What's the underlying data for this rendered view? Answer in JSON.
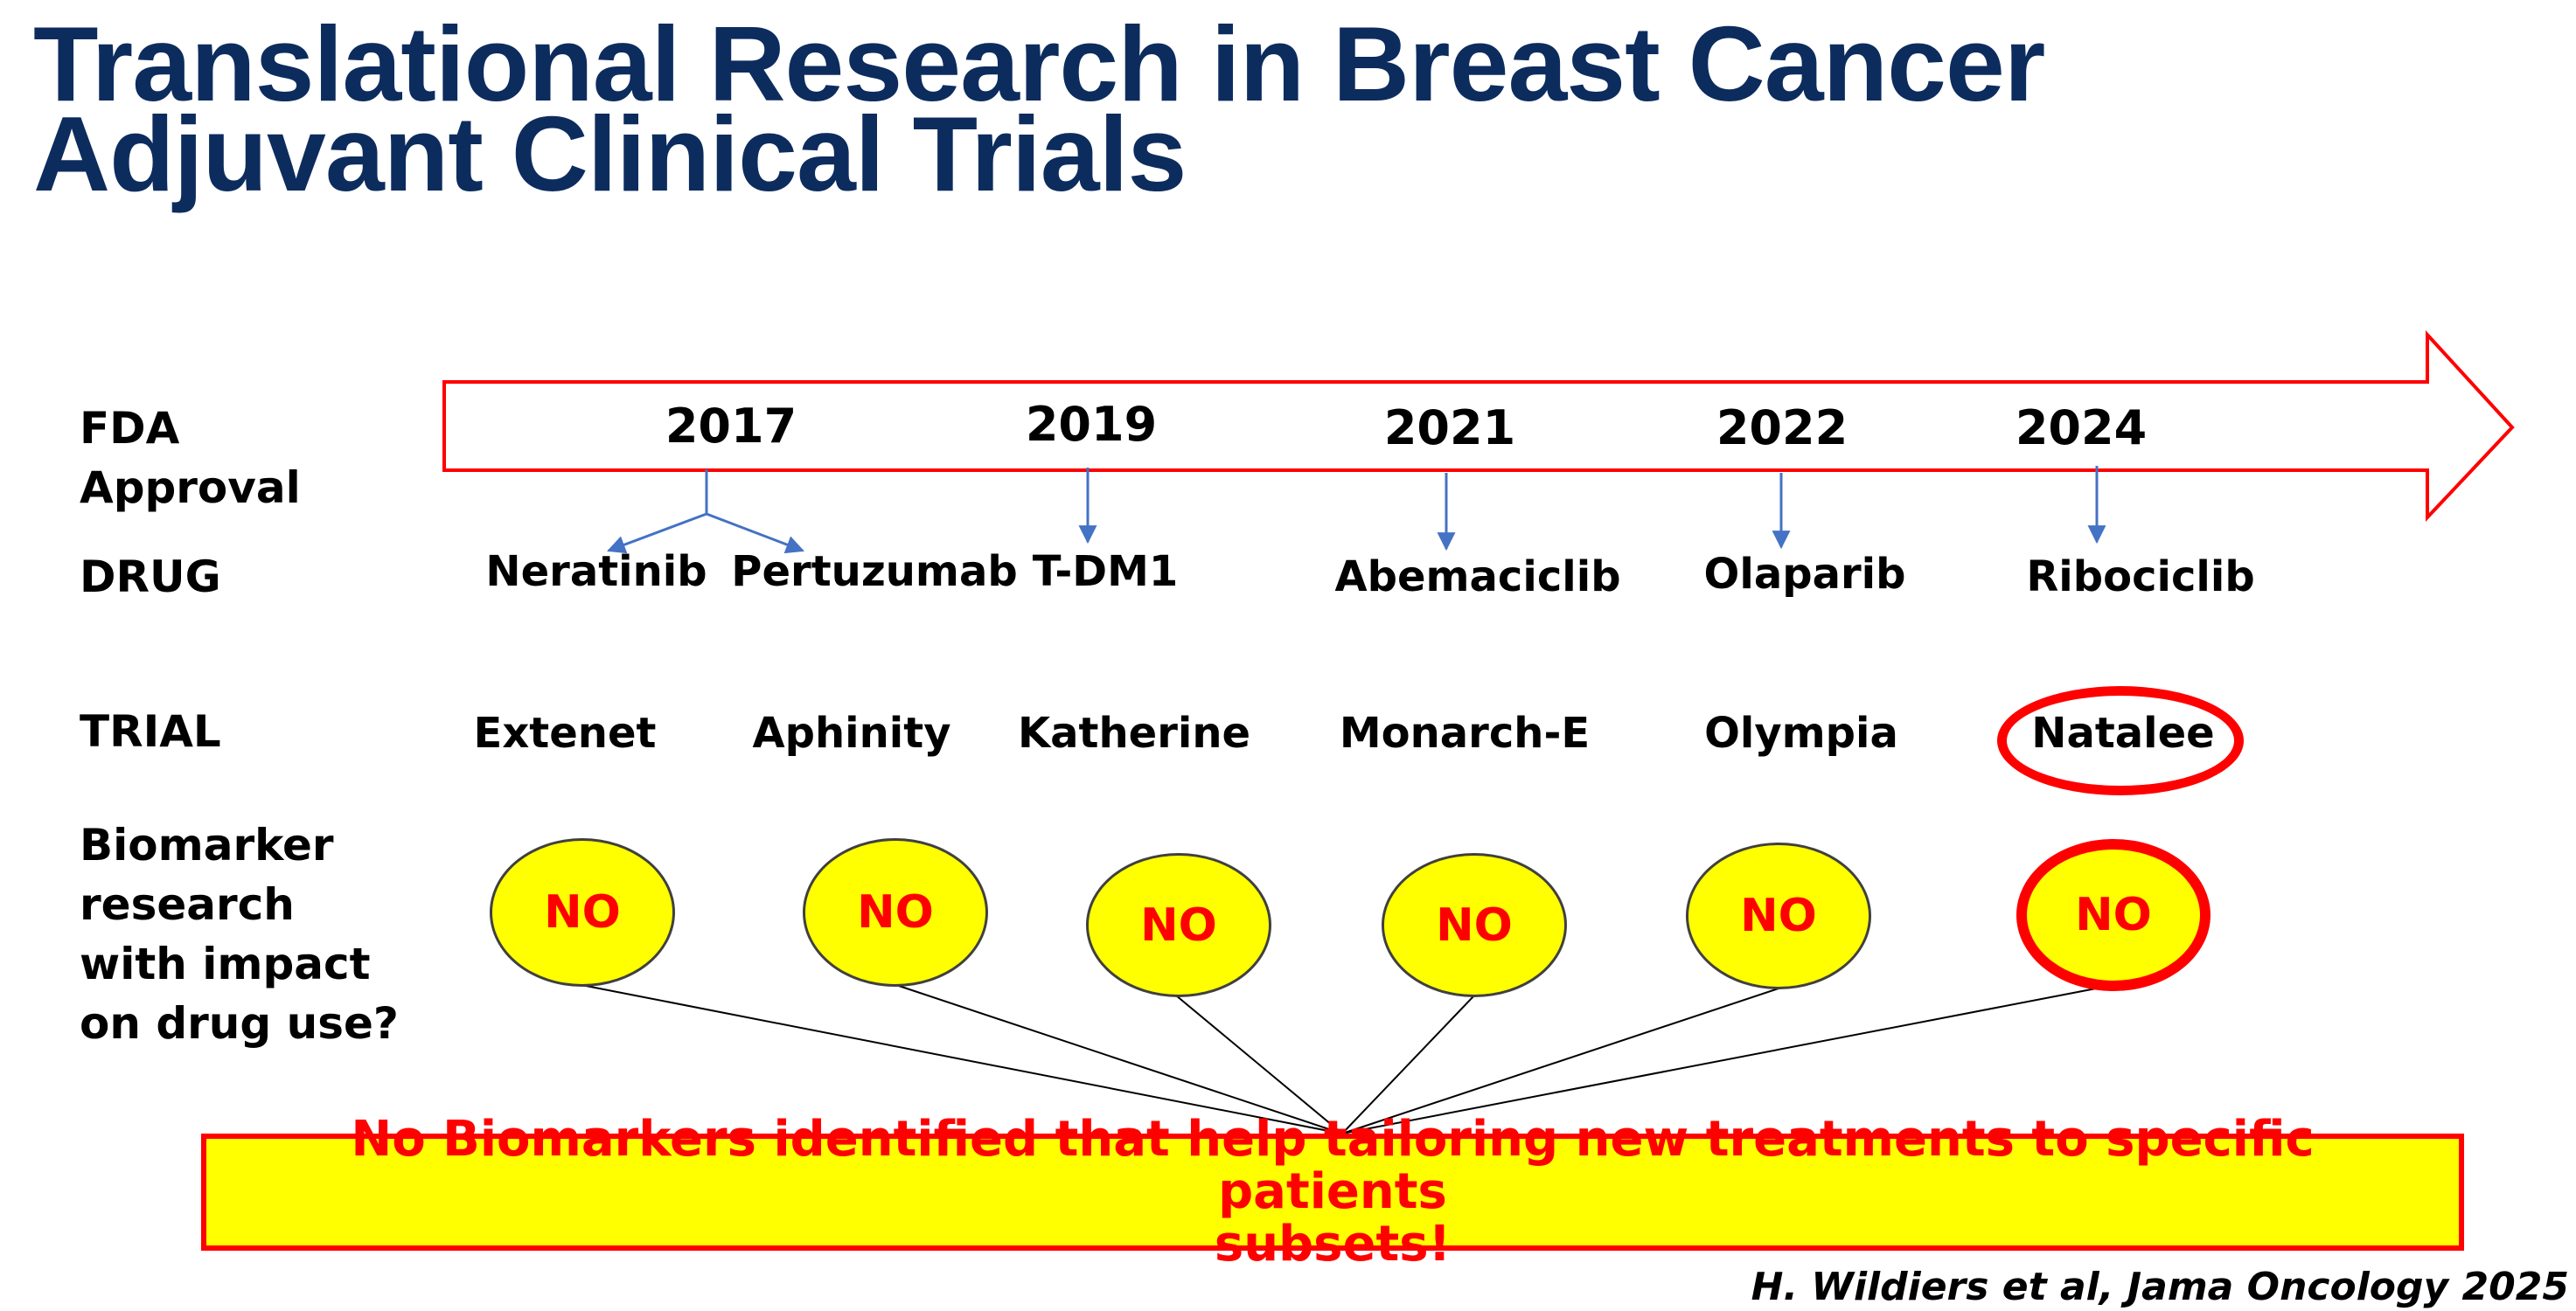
{
  "title": {
    "line1": "Translational Research in Breast Cancer",
    "line2": "Adjuvant Clinical Trials"
  },
  "row_labels": {
    "fda_line1": "FDA",
    "fda_line2": "Approval",
    "drug": "DRUG",
    "trial": "TRIAL",
    "biomarker_lines": [
      "Biomarker",
      "research",
      "with impact",
      "on drug use?"
    ]
  },
  "timeline": {
    "years": [
      "2017",
      "2019",
      "2021",
      "2022",
      "2024"
    ],
    "drugs": [
      "Neratinib",
      "Pertuzumab",
      "T-DM1",
      "Abemaciclib",
      "Olaparib",
      "Ribociclib"
    ],
    "trials": [
      "Extenet",
      "Aphinity",
      "Katherine",
      "Monarch-E",
      "Olympia",
      "Natalee"
    ],
    "biomarker_answers": [
      "NO",
      "NO",
      "NO",
      "NO",
      "NO",
      "NO"
    ],
    "highlighted_trial": "Natalee"
  },
  "conclusion": {
    "line1": "No Biomarkers identified that help tailoring new treatments to specific patients",
    "line2": "subsets!"
  },
  "citation": "H. Wildiers et al, Jama Oncology 2025",
  "colors": {
    "title": "#0d2c5e",
    "arrow_outline": "#ff0000",
    "connector_arrows": "#4472c4",
    "badge_fill": "#ffff00",
    "badge_text": "#ff0000",
    "highlight": "#ff0000"
  }
}
